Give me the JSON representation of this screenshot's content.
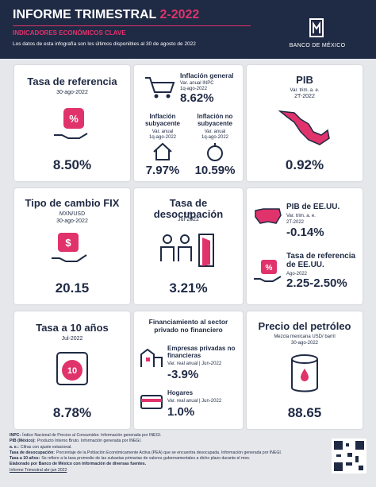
{
  "header": {
    "title": "INFORME TRIMESTRAL",
    "period": "2-2022",
    "subtitle": "INDICADORES ECONÓMICOS CLAVE",
    "note": "Los datos de esta infografía son los últimos disponibles al 30 de agosto de 2022",
    "logo": "BANCO DE MÉXICO"
  },
  "cards": {
    "tasa_referencia": {
      "title": "Tasa de referencia",
      "date": "30-ago-2022",
      "value": "8.50%"
    },
    "inflacion": {
      "general": {
        "title": "Inflación general",
        "measure": "Var. anual INPC",
        "date": "1q-ago-2022",
        "value": "8.62%"
      },
      "subyacente": {
        "title": "Inflación subyacente",
        "measure": "Var. anual",
        "date": "1q-ago-2022",
        "value": "7.97%"
      },
      "no_subyacente": {
        "title": "Inflación no subyacente",
        "measure": "Var. anual",
        "date": "1q-ago-2022",
        "value": "10.59%"
      }
    },
    "pib": {
      "title": "PIB",
      "measure": "Var. trim. a. e.",
      "date": "2T-2022",
      "value": "0.92%"
    },
    "tipo_cambio": {
      "title": "Tipo de cambio FIX",
      "measure": "MXN/USD",
      "date": "30-ago-2022",
      "value": "20.15"
    },
    "desocupacion": {
      "title": "Tasa de desocupación",
      "measure": "a. e.",
      "date": "Jul-2022",
      "value": "3.21%"
    },
    "pib_eeuu": {
      "title": "PIB de EE.UU.",
      "measure": "Var. trim. a. e.",
      "date": "2T-2022",
      "value": "-0.14%"
    },
    "tasa_eeuu": {
      "title": "Tasa de referencia de EE.UU.",
      "date": "Ago-2022",
      "value": "2.25-2.50%"
    },
    "tasa_10": {
      "title": "Tasa a 10 años",
      "date": "Jul-2022",
      "value": "8.78%"
    },
    "financiamiento": {
      "title": "Financiamiento al sector privado no financiero",
      "empresas": {
        "title": "Empresas privadas no financieras",
        "measure": "Var. real anual | Jun-2022",
        "value": "-3.9%"
      },
      "hogares": {
        "title": "Hogares",
        "measure": "Var. real anual | Jun-2022",
        "value": "1.0%"
      }
    },
    "petroleo": {
      "title": "Precio del petróleo",
      "measure": "Mezcla mexicana USD/ barril",
      "date": "30-ago-2022",
      "value": "88.65"
    }
  },
  "notes": [
    {
      "term": "INPC:",
      "text": "Índice Nacional de Precios al Consumidor. Información generada por INEGI."
    },
    {
      "term": "PIB (México):",
      "text": "Producto Interno Bruto. Información generada por INEGI."
    },
    {
      "term": "a. e.:",
      "text": "Cifras con ajuste estacional."
    },
    {
      "term": "Tasa de desocupación:",
      "text": "Porcentaje de la Población Económicamente Activa (PEA) que se encuentra desocupada. Información generada por INEGI."
    },
    {
      "term": "Tasa a 10 años:",
      "text": "Se refiere a la tasa promedio de las subastas primarias de valores gubernamentales a dicho plazo durante el mes."
    }
  ],
  "credit": "Elaborado por Banco de México con información de diversas fuentes.",
  "link": "Informe Trimestral abr-jun 2022"
}
